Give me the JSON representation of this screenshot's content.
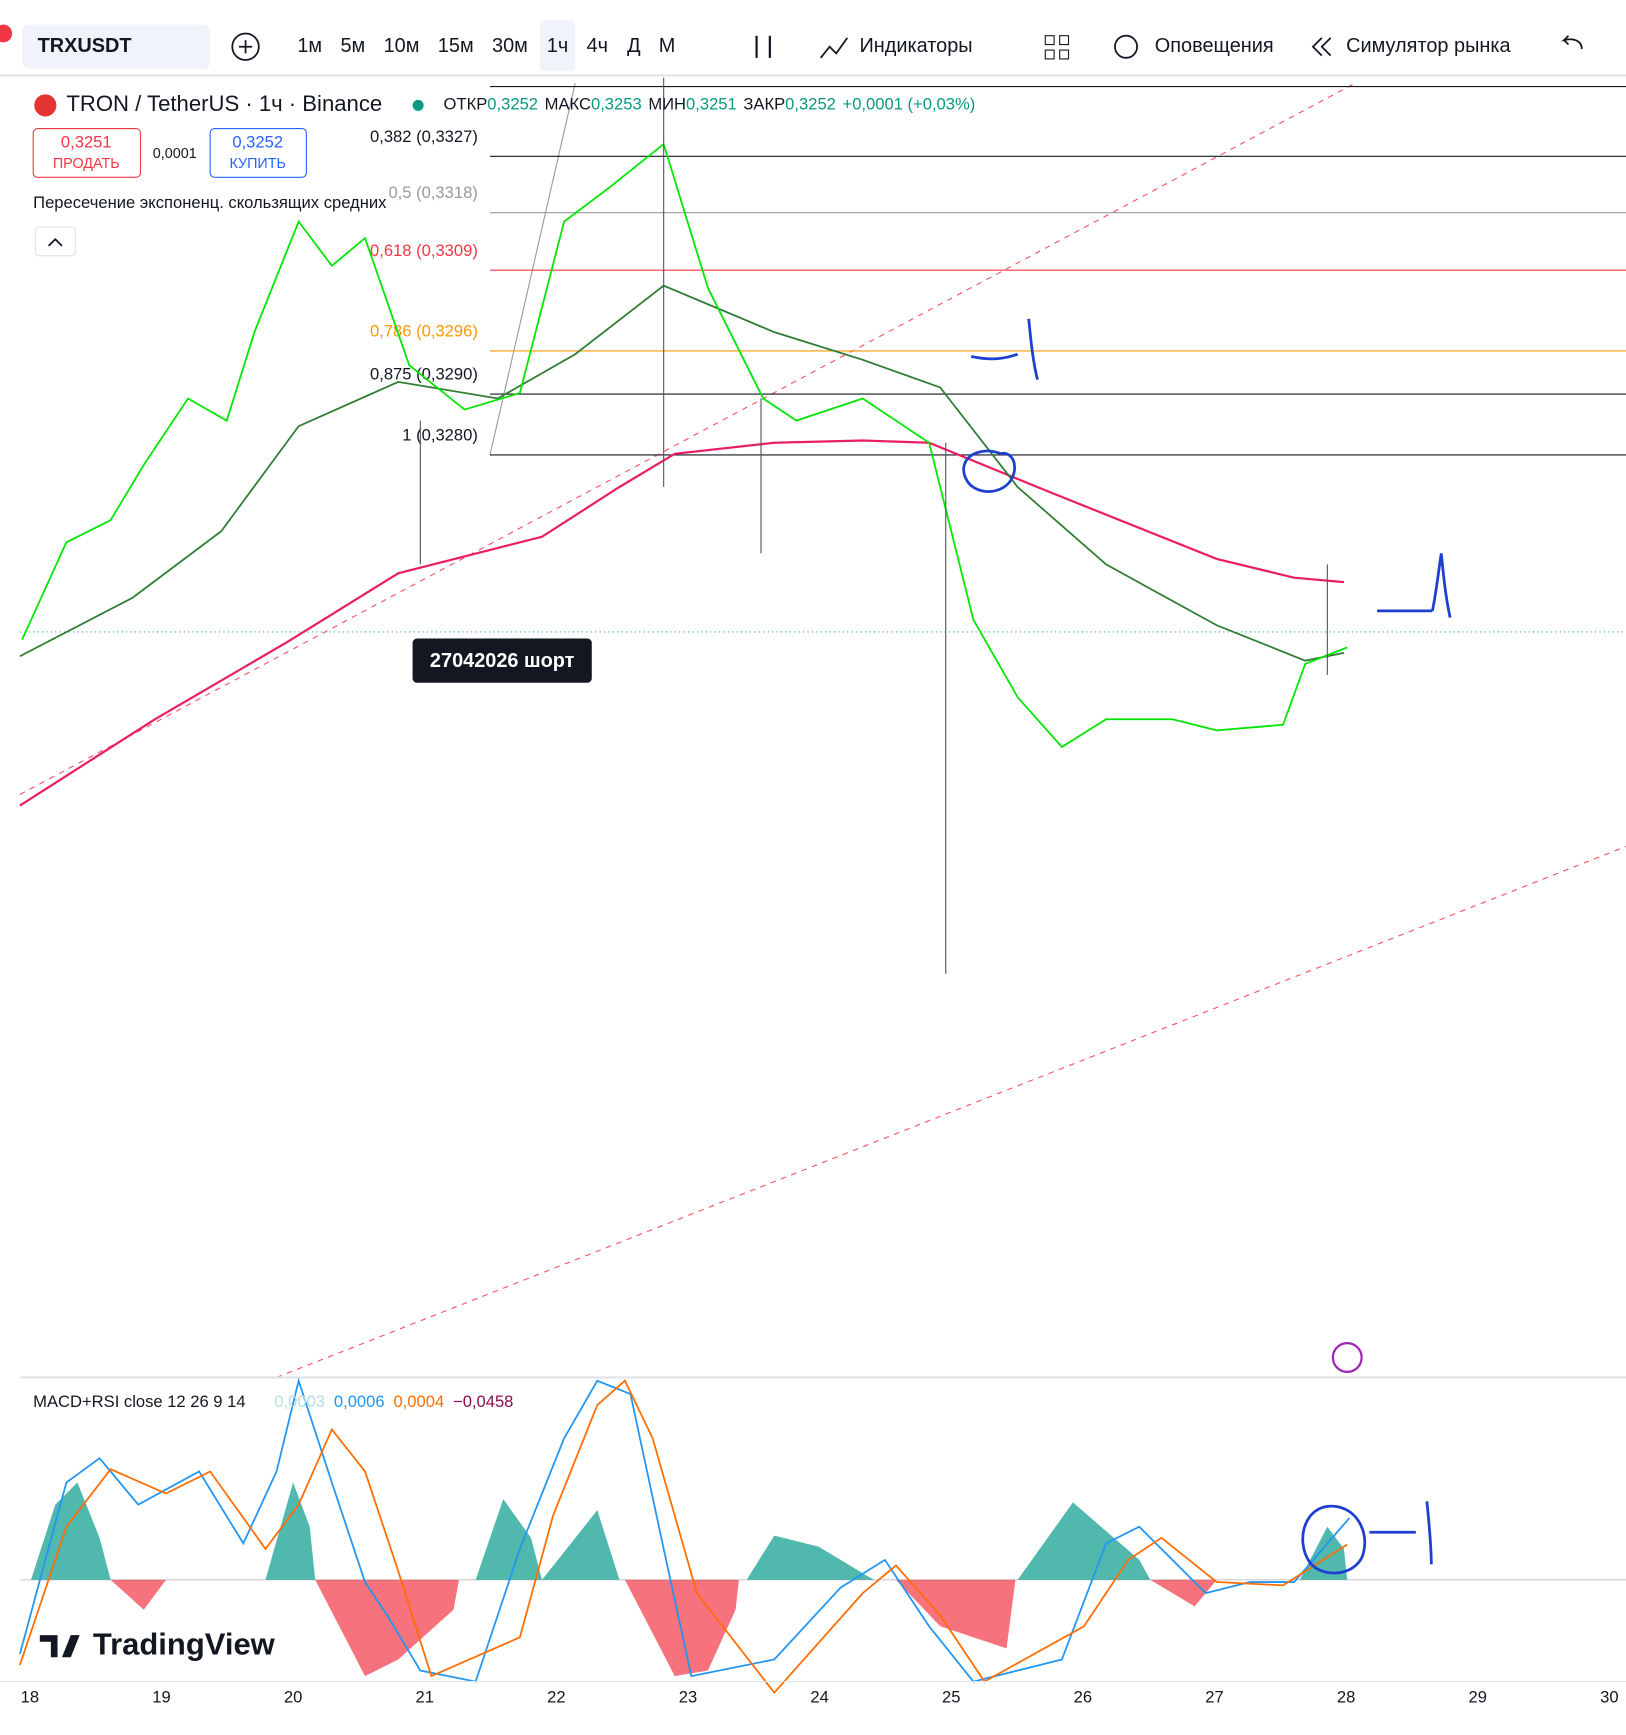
{
  "toolbar": {
    "symbol": "TRXUSDT",
    "intervals": [
      "1м",
      "5м",
      "10м",
      "15м",
      "30м",
      "1ч",
      "4ч",
      "Д",
      "М"
    ],
    "indicators": "Индикаторы",
    "alerts": "Оповещения",
    "replay": "Симулятор рынка"
  },
  "legend": {
    "title": "TRON / TetherUS · 1ч · Binance",
    "open_label": "ОТКР",
    "open": "0,3252",
    "high_label": "МАКС",
    "high": "0,3253",
    "low_label": "МИН",
    "low": "0,3251",
    "close_label": "ЗАКР",
    "close": "0,3252",
    "change": "+0,0001 (+0,03%)"
  },
  "trade": {
    "sell_price": "0,3251",
    "sell": "ПРОДАТЬ",
    "spread": "0,0001",
    "buy_price": "0,3252",
    "buy": "КУПИТЬ"
  },
  "indicator": "Пересечение экспоненц. скользящих средних",
  "fib_levels": [
    "0,382 (0,3327)",
    "0,5 (0,3318)",
    "0,618 (0,3309)",
    "0,786 (0,3296)",
    "0,875 (0,3290)",
    "1 (0,3280)"
  ],
  "note": "27042026 шорт",
  "macd": {
    "title": "MACD+RSI close 12 26 9 14",
    "values": [
      "0,0003",
      "0,0006",
      "0,0004",
      "−0,0458"
    ]
  },
  "x_axis": [
    "18",
    "19",
    "20",
    "21",
    "22",
    "23",
    "24",
    "25",
    "26",
    "27",
    "28",
    "29",
    "30"
  ],
  "logo": "TradingView"
}
